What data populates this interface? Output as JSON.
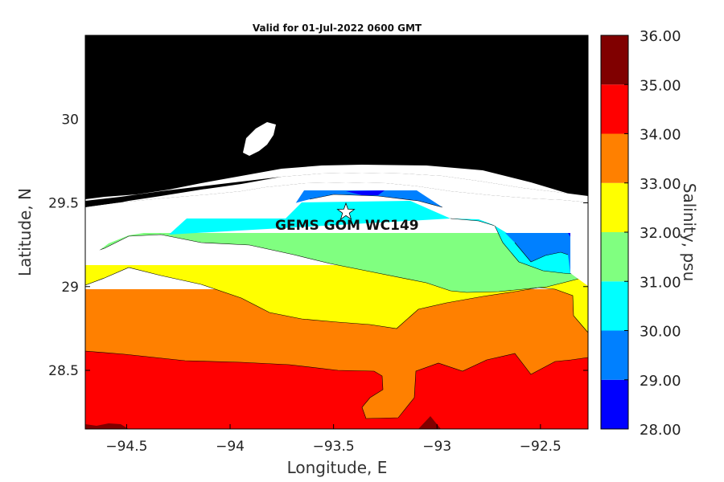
{
  "title": "Valid for 01-Jul-2022 0600 GMT",
  "xlabel": "Longitude, E",
  "ylabel": "Latitude, N",
  "colorbar_label": "Salinity, psu",
  "site": {
    "name": "GEMS GOM WC149",
    "lon": -93.42,
    "lat": 29.45
  },
  "x_ticks": [
    {
      "value": -94.5,
      "label": "-94.5"
    },
    {
      "value": -94,
      "label": "-94"
    },
    {
      "value": -93.5,
      "label": "-93.5"
    },
    {
      "value": -93,
      "label": "-93"
    },
    {
      "value": -92.5,
      "label": "-92.5"
    }
  ],
  "y_ticks": [
    {
      "value": 30,
      "label": "30"
    },
    {
      "value": 29.5,
      "label": "29.5"
    },
    {
      "value": 29,
      "label": "29"
    },
    {
      "value": 28.5,
      "label": "28.5"
    }
  ],
  "colorbar": {
    "levels": [
      28,
      29,
      30,
      31,
      32,
      33,
      34,
      35,
      36
    ],
    "labels": [
      "28.00",
      "29.00",
      "30.00",
      "31.00",
      "32.00",
      "33.00",
      "34.00",
      "35.00",
      "36.00"
    ],
    "colors": [
      "#0000ff",
      "#0080ff",
      "#00ffff",
      "#80ff80",
      "#ffff00",
      "#ff8000",
      "#ff0000",
      "#800000"
    ]
  },
  "chart_data": {
    "type": "heatmap",
    "title": "Valid for 01-Jul-2022 0600 GMT",
    "xlabel": "Longitude, E",
    "ylabel": "Latitude, N",
    "xlim": [
      -94.7,
      -92.27
    ],
    "ylim": [
      28.15,
      30.5
    ],
    "land_color": "#000000",
    "nodata_color": "#ffffff",
    "bands": [
      {
        "range": "34-35",
        "color": "#ff0000",
        "min_salinity": 34,
        "boundary": [
          [
            -94.7,
            28.62
          ],
          [
            -94.5,
            28.6
          ],
          [
            -94.2,
            28.58
          ],
          [
            -93.95,
            28.57
          ],
          [
            -93.7,
            28.55
          ],
          [
            -93.45,
            28.52
          ],
          [
            -93.32,
            28.47
          ],
          [
            -93.33,
            28.35
          ],
          [
            -93.42,
            28.3
          ],
          [
            -93.45,
            28.23
          ],
          [
            -93.3,
            28.22
          ],
          [
            -93.15,
            28.3
          ],
          [
            -93.06,
            28.5
          ],
          [
            -92.9,
            28.52
          ],
          [
            -92.8,
            28.48
          ],
          [
            -92.6,
            28.55
          ],
          [
            -92.47,
            28.47
          ],
          [
            -92.38,
            28.52
          ],
          [
            -92.27,
            28.55
          ]
        ]
      },
      {
        "range": "33-34",
        "color": "#ff8000",
        "min_salinity": 33,
        "boundary": [
          [
            -94.7,
            29.02
          ],
          [
            -94.55,
            29.05
          ],
          [
            -94.42,
            29.12
          ],
          [
            -94.2,
            29.07
          ],
          [
            -94.0,
            29.02
          ],
          [
            -93.78,
            28.95
          ],
          [
            -93.65,
            28.87
          ],
          [
            -93.48,
            28.82
          ],
          [
            -93.3,
            28.8
          ],
          [
            -93.2,
            28.72
          ],
          [
            -93.06,
            28.83
          ],
          [
            -92.9,
            28.88
          ],
          [
            -92.75,
            28.91
          ],
          [
            -92.6,
            28.93
          ],
          [
            -92.48,
            28.98
          ],
          [
            -92.38,
            28.96
          ],
          [
            -92.35,
            28.82
          ],
          [
            -92.27,
            28.7
          ]
        ]
      },
      {
        "range": "32-33",
        "color": "#ffff00",
        "min_salinity": 32,
        "boundary": [
          [
            -94.7,
            29.18
          ],
          [
            -94.6,
            29.25
          ],
          [
            -94.45,
            29.32
          ],
          [
            -94.3,
            29.31
          ],
          [
            -94.1,
            29.26
          ],
          [
            -93.9,
            29.24
          ],
          [
            -93.72,
            29.2
          ],
          [
            -93.55,
            29.15
          ],
          [
            -93.3,
            29.08
          ],
          [
            -93.15,
            29.03
          ],
          [
            -93.0,
            28.98
          ],
          [
            -92.85,
            28.98
          ],
          [
            -92.65,
            29.0
          ],
          [
            -92.5,
            28.97
          ],
          [
            -92.4,
            28.97
          ],
          [
            -92.27,
            29.0
          ]
        ]
      },
      {
        "range": "31-32",
        "color": "#80ff80",
        "min_salinity": 31,
        "boundary": [
          [
            -94.5,
            29.32
          ],
          [
            -94.2,
            29.4
          ],
          [
            -93.0,
            29.4
          ],
          [
            -92.9,
            29.3
          ],
          [
            -92.8,
            29.16
          ],
          [
            -92.7,
            29.08
          ],
          [
            -92.56,
            29.06
          ],
          [
            -92.27,
            29.03
          ]
        ]
      },
      {
        "range": "30-31",
        "color": "#00ffff",
        "min_salinity": 30,
        "boundary": [
          [
            -93.65,
            29.5
          ],
          [
            -93.45,
            29.53
          ],
          [
            -93.15,
            29.5
          ],
          [
            -92.85,
            29.32
          ],
          [
            -92.7,
            29.16
          ],
          [
            -92.55,
            29.1
          ],
          [
            -92.27,
            29.1
          ]
        ]
      },
      {
        "range": "29-30",
        "color": "#0080ff",
        "min_salinity": 29,
        "boundary": [
          [
            -93.65,
            29.52
          ],
          [
            -93.55,
            29.58
          ],
          [
            -93.2,
            29.58
          ],
          [
            -93.05,
            29.48
          ],
          [
            -92.85,
            29.33
          ],
          [
            -92.7,
            29.22
          ],
          [
            -92.55,
            29.2
          ],
          [
            -92.27,
            29.2
          ]
        ]
      }
    ]
  }
}
